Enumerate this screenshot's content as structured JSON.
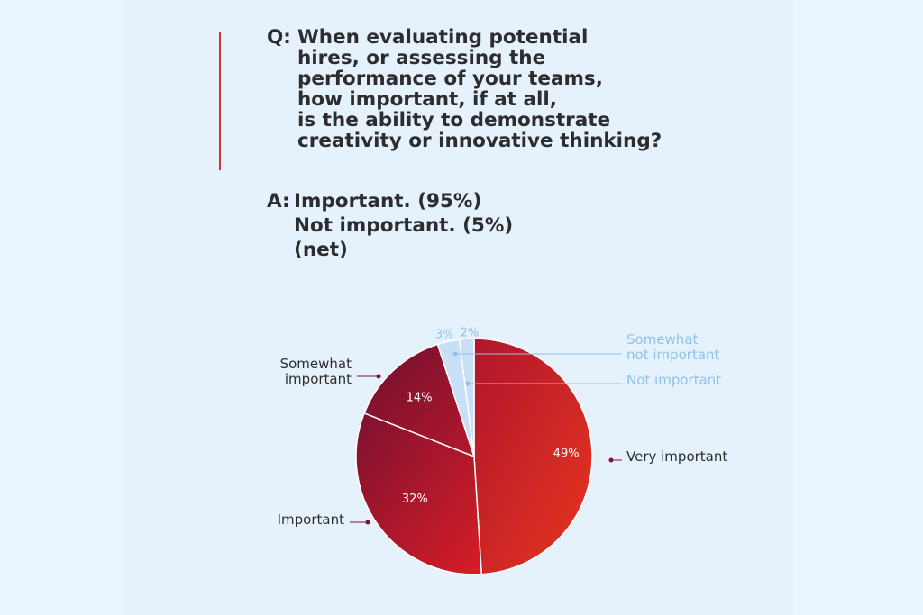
{
  "question": {
    "prefix": "Q:",
    "lines": [
      "When evaluating potential",
      "hires, or assessing the",
      "performance of your teams,",
      "how important, if at all,",
      "is the ability to demonstrate",
      "creativity or innovative thinking?"
    ]
  },
  "answer": {
    "prefix": "A:",
    "lines": [
      "Important. (95%)",
      "Not important. (5%)",
      "(net)"
    ]
  },
  "colors": {
    "accent": "#d0303a",
    "dark_red": "#7e1131",
    "red": "#e0242a",
    "light_blue": "#c8dff5",
    "label_blue": "#8fc2ea",
    "text": "#2d2d2f"
  },
  "chart_data": {
    "type": "pie",
    "title": "",
    "slices": [
      {
        "label": "Very important",
        "value": 49,
        "value_label": "49%"
      },
      {
        "label": "Important",
        "value": 32,
        "value_label": "32%"
      },
      {
        "label": "Somewhat important",
        "value": 14,
        "value_label": "14%"
      },
      {
        "label": "Somewhat not important",
        "value": 3,
        "value_label": "3%"
      },
      {
        "label": "Not important",
        "value": 2,
        "value_label": "2%"
      }
    ]
  }
}
